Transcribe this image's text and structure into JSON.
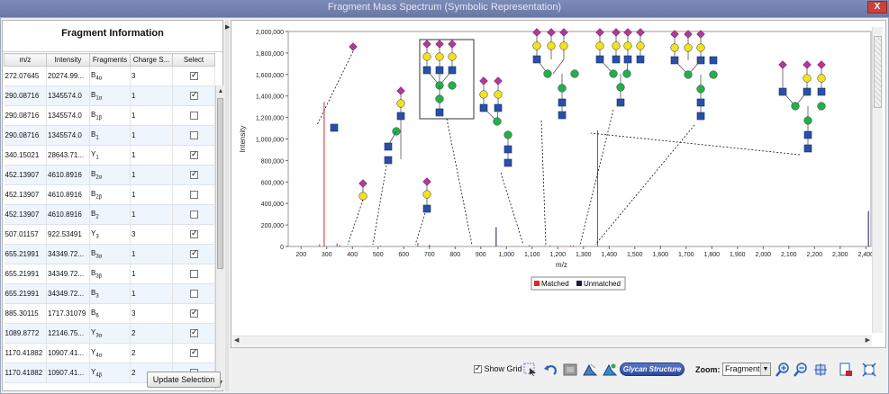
{
  "window": {
    "title": "Fragment Mass Spectrum (Symbolic Representation)",
    "close_label": "X"
  },
  "fragment_panel": {
    "title": "Fragment Information",
    "columns": [
      "m/z",
      "Intensity",
      "Fragments",
      "Charge S...",
      "Select"
    ],
    "rows": [
      {
        "mz": "272.07645",
        "intensity": "20274.99...",
        "frag": "B",
        "sub": "4α",
        "charge": "3",
        "selected": true
      },
      {
        "mz": "290.08716",
        "intensity": "1345574.0",
        "frag": "B",
        "sub": "1α",
        "charge": "1",
        "selected": true
      },
      {
        "mz": "290.08716",
        "intensity": "1345574.0",
        "frag": "B",
        "sub": "1β",
        "charge": "1",
        "selected": false
      },
      {
        "mz": "290.08716",
        "intensity": "1345574.0",
        "frag": "B",
        "sub": "1",
        "charge": "1",
        "selected": false
      },
      {
        "mz": "340.15021",
        "intensity": "28643.71...",
        "frag": "Y",
        "sub": "1",
        "charge": "1",
        "selected": true
      },
      {
        "mz": "452.13907",
        "intensity": "4610.8916",
        "frag": "B",
        "sub": "2α",
        "charge": "1",
        "selected": true
      },
      {
        "mz": "452.13907",
        "intensity": "4610.8916",
        "frag": "B",
        "sub": "2β",
        "charge": "1",
        "selected": false
      },
      {
        "mz": "452.13907",
        "intensity": "4610.8916",
        "frag": "B",
        "sub": "2",
        "charge": "1",
        "selected": false
      },
      {
        "mz": "507.01157",
        "intensity": "922.53491",
        "frag": "Y",
        "sub": "3",
        "charge": "3",
        "selected": true
      },
      {
        "mz": "655.21991",
        "intensity": "34349.72...",
        "frag": "B",
        "sub": "3α",
        "charge": "1",
        "selected": true
      },
      {
        "mz": "655.21991",
        "intensity": "34349.72...",
        "frag": "B",
        "sub": "3β",
        "charge": "1",
        "selected": false
      },
      {
        "mz": "655.21991",
        "intensity": "34349.72...",
        "frag": "B",
        "sub": "3",
        "charge": "1",
        "selected": false
      },
      {
        "mz": "885.30115",
        "intensity": "1717.31079",
        "frag": "B",
        "sub": "6",
        "charge": "3",
        "selected": true
      },
      {
        "mz": "1089.8772",
        "intensity": "12146.75...",
        "frag": "Y",
        "sub": "3α",
        "charge": "2",
        "selected": true
      },
      {
        "mz": "1170.41882",
        "intensity": "10907.41...",
        "frag": "Y",
        "sub": "4α",
        "charge": "2",
        "selected": true
      },
      {
        "mz": "1170.41882",
        "intensity": "10907.41...",
        "frag": "Y",
        "sub": "4β",
        "charge": "2",
        "selected": false
      }
    ],
    "update_button": "Update Selection"
  },
  "colors": {
    "matched": "#e0262a",
    "unmatched": "#1c1c4a",
    "hexnac_square": "#2a4fa8",
    "hexose_circle": "#22b04a",
    "galactose_circle": "#f2e11c",
    "sialic_diamond": "#b03a9a"
  },
  "chart_data": {
    "type": "bar",
    "xlabel": "m/z",
    "ylabel": "Intensity",
    "xlim": [
      150,
      2420
    ],
    "ylim": [
      0,
      2000000
    ],
    "xticks": [
      "200",
      "300",
      "400",
      "500",
      "600",
      "700",
      "800",
      "900",
      "1,000",
      "1,100",
      "1,200",
      "1,300",
      "1,400",
      "1,500",
      "1,600",
      "1,700",
      "1,800",
      "1,900",
      "2,000",
      "2,100",
      "2,200",
      "2,300",
      "2,400"
    ],
    "yticks": [
      "0",
      "200,000",
      "400,000",
      "600,000",
      "800,000",
      "1,000,000",
      "1,200,000",
      "1,400,000",
      "1,600,000",
      "1,800,000",
      "2,000,000"
    ],
    "legend": [
      "Matched",
      "Unmatched"
    ],
    "legend_position": "bottom-center",
    "series": [
      {
        "name": "Matched",
        "x": [
          272,
          290,
          340,
          452,
          655,
          885,
          1089,
          1170,
          1250,
          1355
        ],
        "y": [
          20000,
          1345574,
          28600,
          4600,
          34300,
          1700,
          12100,
          10900,
          8000,
          1080000
        ]
      },
      {
        "name": "Unmatched",
        "x": [
          350,
          510,
          700,
          960,
          1150,
          1260,
          1400,
          1600,
          1800,
          2100,
          2300,
          2410
        ],
        "y": [
          9000,
          6000,
          14000,
          180000,
          5000,
          7000,
          4000,
          6000,
          3000,
          5000,
          4000,
          330000
        ]
      }
    ]
  },
  "toolbar": {
    "show_grid_label": "Show Grid",
    "show_grid_checked": true,
    "glycan_button": "Glycan Structure",
    "zoom_label": "Zoom:",
    "zoom_value": "Fragment"
  },
  "icons": [
    "select-pointer-icon",
    "undo-icon",
    "image-icon",
    "peak-icon",
    "peak-annotate-icon",
    "zoom-in-icon",
    "zoom-out-icon",
    "fit-icon",
    "export-icon",
    "fullscreen-icon"
  ]
}
